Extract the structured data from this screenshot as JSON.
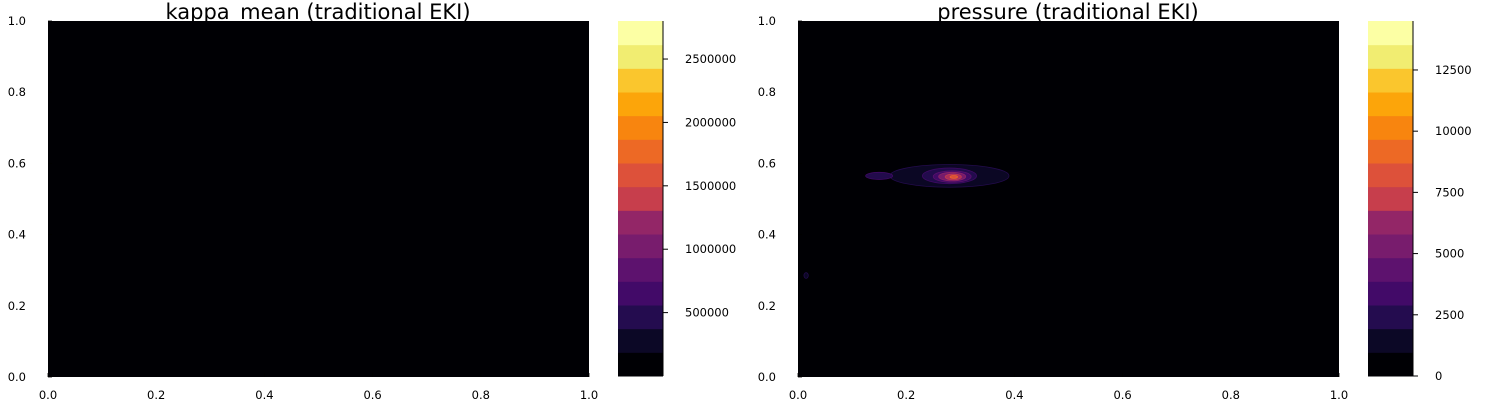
{
  "chart_data": [
    {
      "type": "heatmap",
      "title": "kappa_mean (traditional EKI)",
      "xlabel": "",
      "ylabel": "",
      "xlim": [
        0.0,
        1.0
      ],
      "ylim": [
        0.0,
        1.0
      ],
      "x_ticks": [
        "0.0",
        "0.2",
        "0.4",
        "0.6",
        "0.8",
        "1.0"
      ],
      "y_ticks": [
        "0.0",
        "0.2",
        "0.4",
        "0.6",
        "0.8",
        "1.0"
      ],
      "grid": false,
      "colormap": "inferno",
      "colorbar": {
        "range": [
          0,
          2800000
        ],
        "levels": 15,
        "ticks": [
          500000,
          1000000,
          1500000,
          2000000,
          2500000
        ],
        "tick_labels": [
          "500000",
          "1000000",
          "1500000",
          "2000000",
          "2500000"
        ]
      },
      "field": "filled contour, entire domain at lowest level (~0)",
      "features": []
    },
    {
      "type": "heatmap",
      "title": "pressure (traditional EKI)",
      "xlabel": "",
      "ylabel": "",
      "xlim": [
        0.0,
        1.0
      ],
      "ylim": [
        0.0,
        1.0
      ],
      "x_ticks": [
        "0.0",
        "0.2",
        "0.4",
        "0.6",
        "0.8",
        "1.0"
      ],
      "y_ticks": [
        "0.0",
        "0.2",
        "0.4",
        "0.6",
        "0.8",
        "1.0"
      ],
      "grid": false,
      "colormap": "inferno",
      "colorbar": {
        "range": [
          0,
          14500
        ],
        "levels": 15,
        "ticks": [
          0,
          2500,
          5000,
          7500,
          10000,
          12500
        ],
        "tick_labels": [
          "0",
          "2500",
          "5000",
          "7500",
          "10000",
          "12500"
        ]
      },
      "field": "filled contour, near zero except localized peak",
      "features": [
        {
          "x": 0.28,
          "y": 0.565,
          "rx": 0.11,
          "ry": 0.032,
          "level": 1
        },
        {
          "x": 0.15,
          "y": 0.565,
          "rx": 0.025,
          "ry": 0.01,
          "level": 2
        },
        {
          "x": 0.28,
          "y": 0.565,
          "rx": 0.05,
          "ry": 0.022,
          "level": 2
        },
        {
          "x": 0.285,
          "y": 0.563,
          "rx": 0.035,
          "ry": 0.016,
          "level": 3
        },
        {
          "x": 0.285,
          "y": 0.563,
          "rx": 0.025,
          "ry": 0.012,
          "level": 5
        },
        {
          "x": 0.287,
          "y": 0.562,
          "rx": 0.015,
          "ry": 0.008,
          "level": 7
        },
        {
          "x": 0.288,
          "y": 0.562,
          "rx": 0.007,
          "ry": 0.004,
          "level": 9
        },
        {
          "x": 0.015,
          "y": 0.285,
          "rx": 0.004,
          "ry": 0.008,
          "level": 1
        }
      ]
    }
  ],
  "colors": {
    "colormap_levels": [
      "#000004",
      "#0c0826",
      "#240c4f",
      "#420a68",
      "#5d126e",
      "#781c6d",
      "#932667",
      "#ae305c",
      "#c73e4c",
      "#dd513a",
      "#ed6925",
      "#f8850f",
      "#fca50a",
      "#fac62d",
      "#f1ed71",
      "#fcffa4"
    ],
    "background": "#ffffff"
  }
}
